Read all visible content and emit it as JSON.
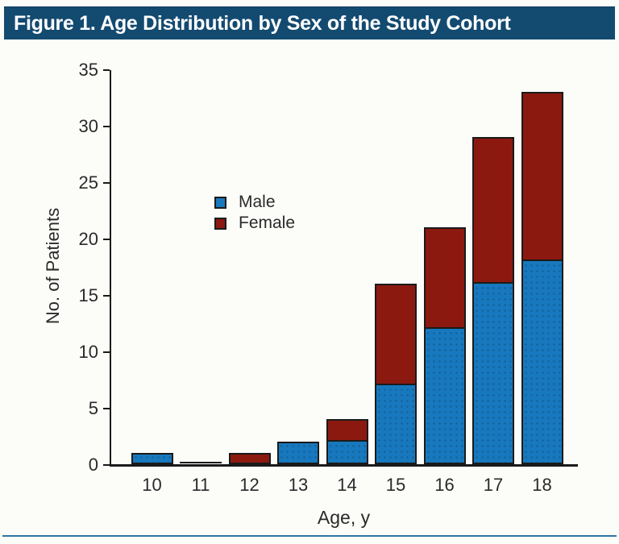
{
  "figure": {
    "title": "Figure 1. Age Distribution by Sex of the Study Cohort"
  },
  "chart_data": {
    "type": "bar",
    "stacked": true,
    "categories": [
      "10",
      "11",
      "12",
      "13",
      "14",
      "15",
      "16",
      "17",
      "18"
    ],
    "series": [
      {
        "name": "Male",
        "color": "#1878bd",
        "values": [
          1,
          0,
          0,
          2,
          2,
          7,
          12,
          16,
          18
        ]
      },
      {
        "name": "Female",
        "color": "#8c190f",
        "values": [
          0,
          0,
          1,
          0,
          2,
          9,
          9,
          13,
          15
        ]
      }
    ],
    "totals": [
      1,
      0,
      1,
      2,
      4,
      16,
      21,
      29,
      33
    ],
    "xlabel": "Age, y",
    "ylabel": "No. of Patients",
    "ylim": [
      0,
      35
    ],
    "yticks": [
      0,
      5,
      10,
      15,
      20,
      25,
      30,
      35
    ],
    "legend_position": "upper-left-inside",
    "grid": false
  },
  "colors": {
    "title_bar_bg": "#134a70",
    "title_text": "#ffffff",
    "axis": "#1a1a1a",
    "male_blue": "#1878bd",
    "female_red": "#8c190f",
    "bottom_rule": "#2e74a2",
    "background": "#fcfcf9",
    "label_text": "#2a2a2a"
  }
}
